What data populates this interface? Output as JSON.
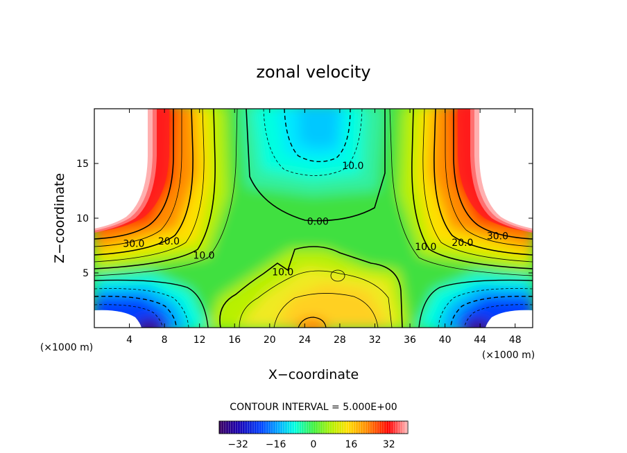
{
  "chart_data": {
    "type": "heatmap",
    "title": "zonal velocity",
    "xlabel": "X−coordinate",
    "ylabel": "Z−coordinate",
    "x_unit_left": "(×1000 m)",
    "x_unit_right": "(×1000 m)",
    "xlim": [
      0,
      50
    ],
    "ylim": [
      0,
      20
    ],
    "xticks": [
      4,
      8,
      12,
      16,
      20,
      24,
      28,
      32,
      36,
      40,
      44,
      48
    ],
    "xtick_labels": [
      "4",
      "8",
      "12",
      "16",
      "20",
      "24",
      "28",
      "32",
      "36",
      "40",
      "44",
      "48"
    ],
    "yticks": [
      5,
      10,
      15
    ],
    "ytick_labels": [
      "5",
      "10",
      "15"
    ],
    "contour_interval_label": "CONTOUR INTERVAL = 5.000E+00",
    "contour_labels": [
      {
        "text": "30.0",
        "x": 4.5,
        "y": 7.7
      },
      {
        "text": "20.0",
        "x": 8.5,
        "y": 7.9
      },
      {
        "text": "10.0",
        "x": 12.5,
        "y": 6.6
      },
      {
        "text": "0.00",
        "x": 25.5,
        "y": 9.7
      },
      {
        "text": "10.0",
        "x": 21.5,
        "y": 5.1
      },
      {
        "text": "10.0",
        "x": 29.5,
        "y": 14.8
      },
      {
        "text": "10.0",
        "x": 37.8,
        "y": 7.4
      },
      {
        "text": "20.0",
        "x": 42.0,
        "y": 7.8
      },
      {
        "text": "30.0",
        "x": 46.0,
        "y": 8.4
      }
    ],
    "colorbar": {
      "range": [
        -40,
        40
      ],
      "ticks": [
        -32,
        -16,
        0,
        16,
        32
      ],
      "tick_labels": [
        "−32",
        "−16",
        "0",
        "16",
        "32"
      ]
    }
  }
}
